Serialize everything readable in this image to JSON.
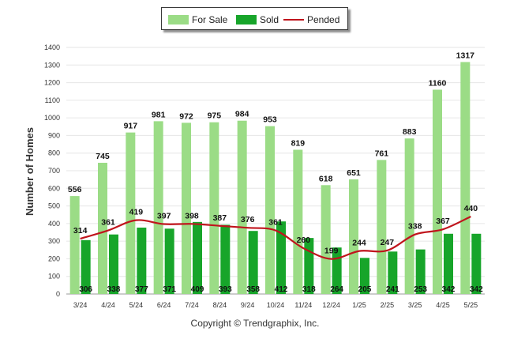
{
  "chart_data": {
    "type": "bar",
    "categories": [
      "3/24",
      "4/24",
      "5/24",
      "6/24",
      "7/24",
      "8/24",
      "9/24",
      "10/24",
      "11/24",
      "12/24",
      "1/25",
      "2/25",
      "3/25",
      "4/25",
      "5/25"
    ],
    "series": [
      {
        "name": "For Sale",
        "type": "bar",
        "color": "#9bdc86",
        "values": [
          556,
          745,
          917,
          981,
          972,
          975,
          984,
          953,
          819,
          618,
          651,
          761,
          883,
          1160,
          1317
        ]
      },
      {
        "name": "Sold",
        "type": "bar",
        "color": "#17a52a",
        "values": [
          306,
          338,
          377,
          371,
          409,
          393,
          358,
          412,
          318,
          264,
          205,
          241,
          253,
          342,
          342
        ]
      },
      {
        "name": "Pended",
        "type": "line",
        "color": "#c0141c",
        "values": [
          314,
          361,
          419,
          397,
          398,
          387,
          376,
          361,
          260,
          199,
          244,
          247,
          338,
          367,
          440
        ]
      }
    ],
    "ylabel": "Number of Homes",
    "xlabel": "",
    "ylim": [
      0,
      1400
    ],
    "yticks": [
      0,
      100,
      200,
      300,
      400,
      500,
      600,
      700,
      800,
      900,
      1000,
      1100,
      1200,
      1300,
      1400
    ],
    "grid": true,
    "legend_position": "top-center"
  },
  "legend": {
    "for_sale": "For Sale",
    "sold": "Sold",
    "pended": "Pended"
  },
  "copyright": "Copyright © Trendgraphix, Inc."
}
